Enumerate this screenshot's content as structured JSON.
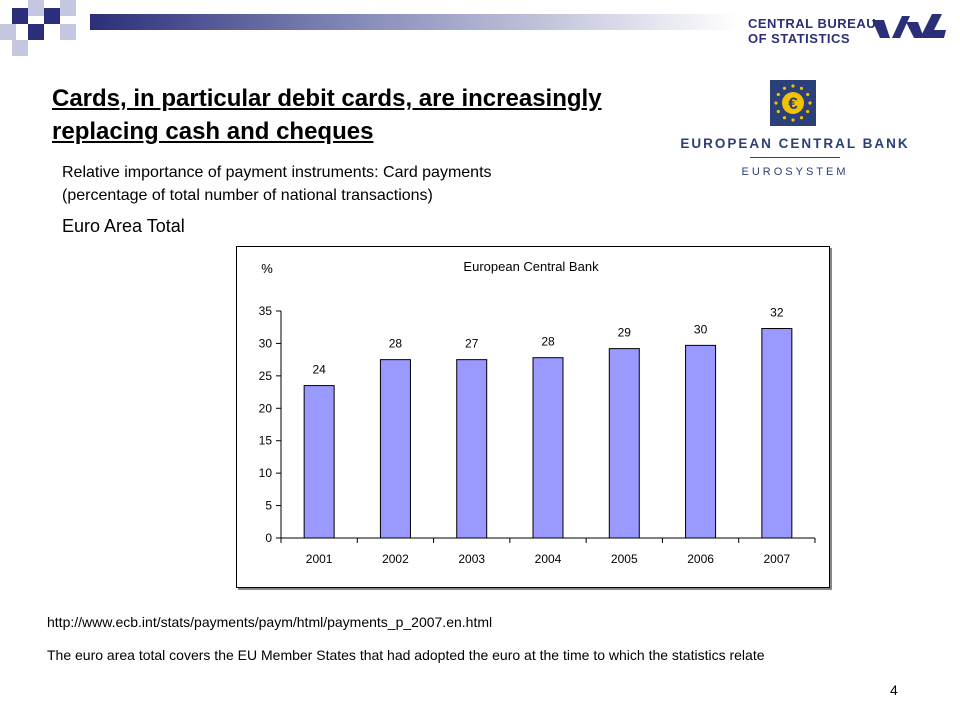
{
  "header": {
    "cbs_line1": "CENTRAL BUREAU",
    "cbs_line2": "OF STATISTICS",
    "brand_color": "#2b2f7a"
  },
  "slide": {
    "title": "Cards, in particular debit cards, are increasingly replacing cash and cheques",
    "subtitle_line1": "Relative importance of payment instruments: Card payments",
    "subtitle_line2": "(percentage of total number of national transactions)",
    "region": "Euro Area Total",
    "source_url": "http://www.ecb.int/stats/payments/paym/html/payments_p_2007.en.html",
    "footnote": "The euro area total covers the EU Member States that had adopted the euro at the time to which the statistics relate",
    "page_number": "4"
  },
  "ecb_logo": {
    "name": "EUROPEAN CENTRAL BANK",
    "subname": "EUROSYSTEM",
    "symbol": "€"
  },
  "chart_data": {
    "type": "bar",
    "title": "European Central Bank",
    "ylabel": "%",
    "categories": [
      "2001",
      "2002",
      "2003",
      "2004",
      "2005",
      "2006",
      "2007"
    ],
    "values": [
      23.5,
      27.5,
      27.5,
      27.8,
      29.2,
      29.7,
      32.3
    ],
    "data_labels": [
      "24",
      "28",
      "27",
      "28",
      "29",
      "30",
      "32"
    ],
    "yticks": [
      "0",
      "5",
      "10",
      "15",
      "20",
      "25",
      "30",
      "35"
    ],
    "ylim": [
      0,
      35
    ],
    "bar_color": "#9999ff",
    "grid": false,
    "legend": "none"
  }
}
